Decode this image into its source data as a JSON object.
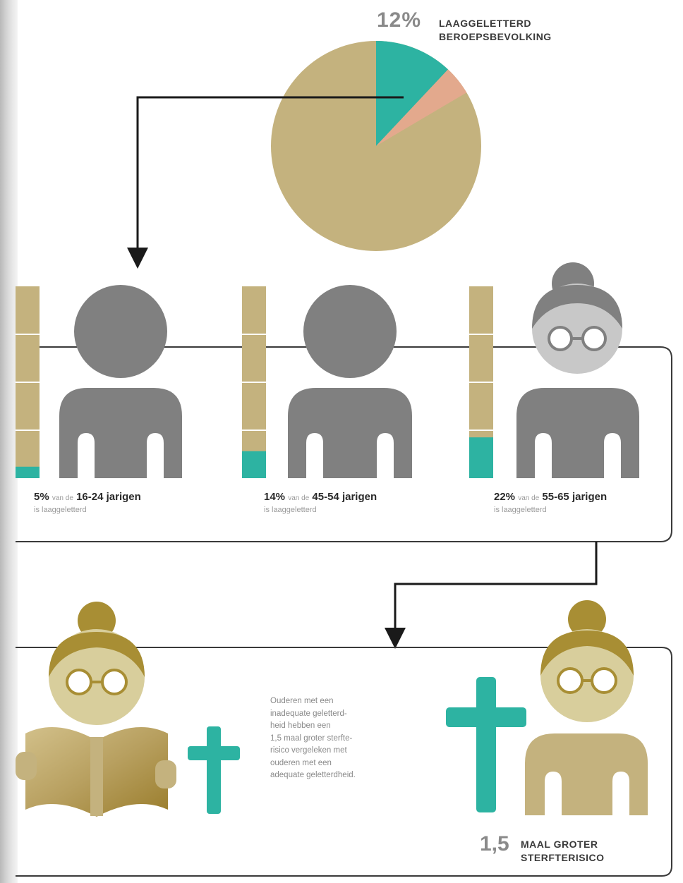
{
  "pie": {
    "percent": "12%",
    "caption_line1": "LAAGGELETTERD",
    "caption_line2": "BEROEPSBEVOLKING",
    "share": 0.12,
    "colors": {
      "main": "#c4b27e",
      "highlight": "#2db3a2",
      "edge": "#e3a98d"
    }
  },
  "groups": [
    {
      "percent": "5%",
      "mid": "van de",
      "age": "16-24 jarigen",
      "suffix": "is laaggeletterd",
      "share": 0.05
    },
    {
      "percent": "14%",
      "mid": "van de",
      "age": "45-54 jarigen",
      "suffix": "is laaggeletterd",
      "share": 0.14
    },
    {
      "percent": "22%",
      "mid": "van de",
      "age": "55-65 jarigen",
      "suffix": "is laaggeletterd",
      "share": 0.22
    }
  ],
  "paragraph": {
    "lines": [
      "Ouderen met een",
      "inadequate geletterd-",
      "heid hebben een",
      "1,5 maal groter sterfte-",
      "risico vergeleken met",
      "ouderen met een",
      "adequate geletterdheid."
    ]
  },
  "risk": {
    "number": "1,5",
    "line1": "MAAL GROTER",
    "line2": "STERFTERISICO"
  },
  "colors": {
    "gold": "#c4b27e",
    "teal": "#2db3a2",
    "gray": "#808080",
    "darkgold": "#a88e34"
  },
  "icons": [
    "person-young-icon",
    "person-middle-icon",
    "elderly-woman-glasses-icon",
    "elderly-woman-reading-icon",
    "cross-icon",
    "elderly-woman-icon"
  ]
}
